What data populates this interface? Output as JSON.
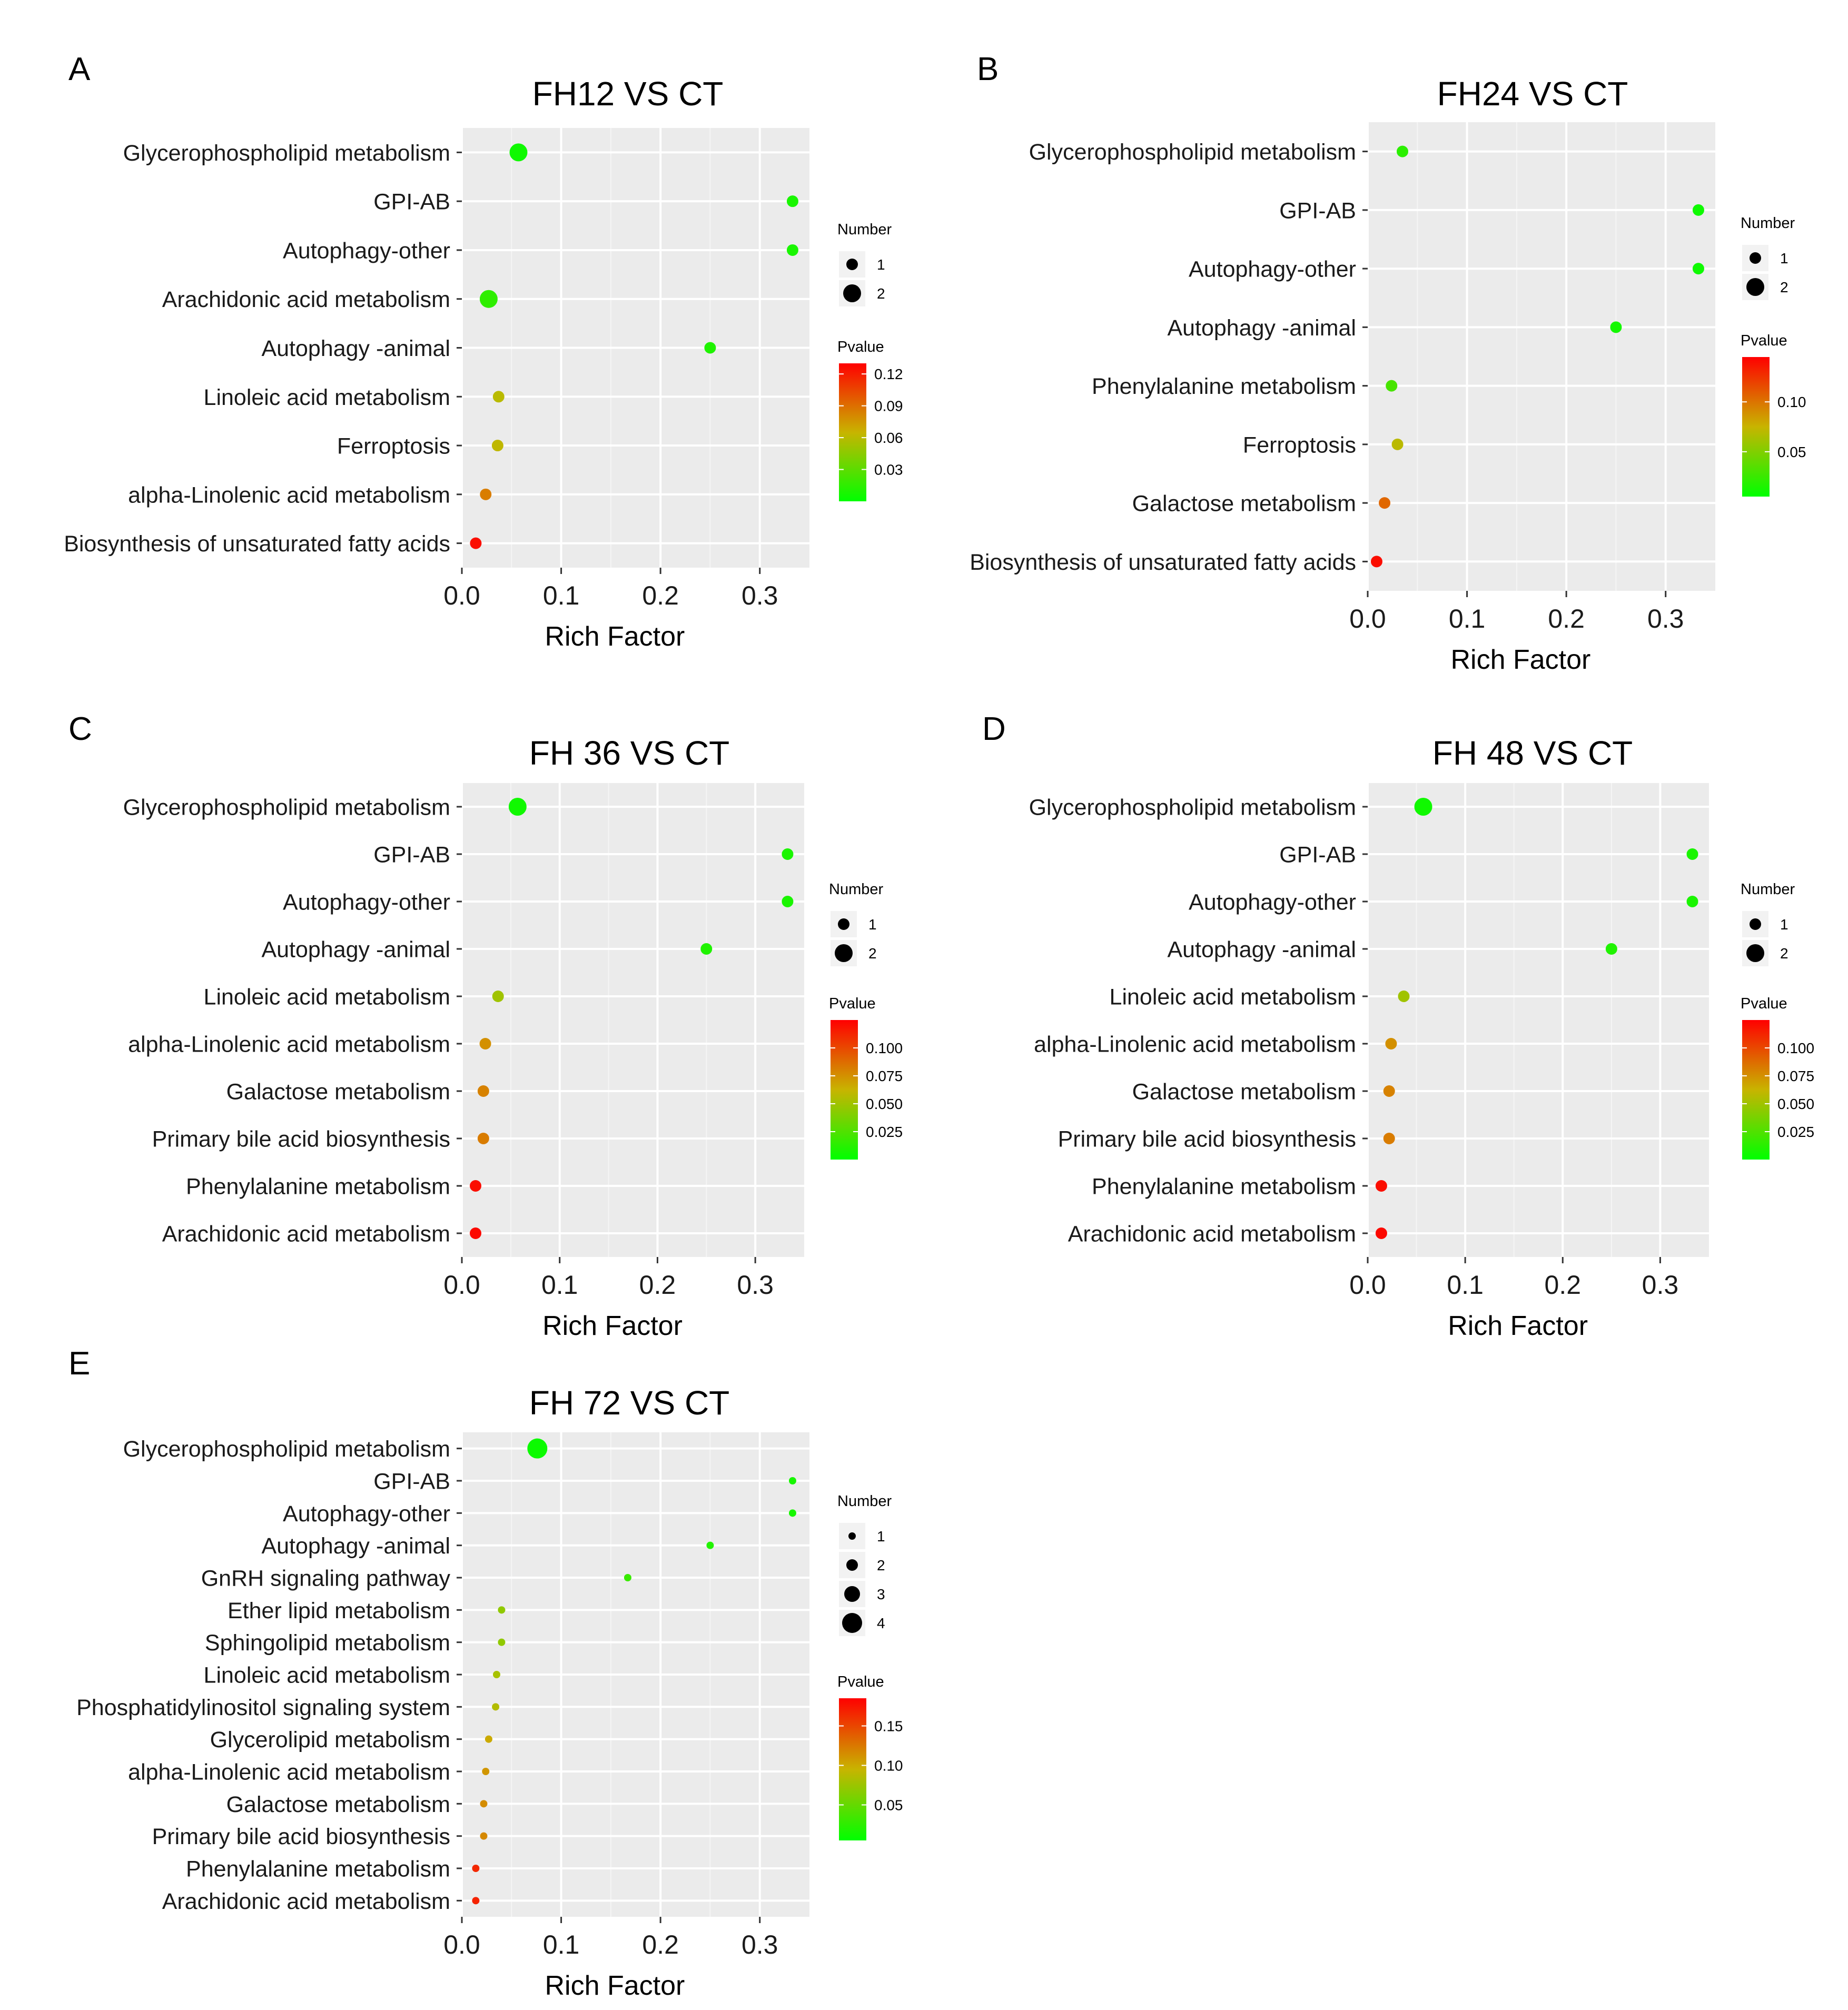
{
  "chart_data": [
    {
      "panel": "A",
      "type": "scatter",
      "title": "FH12 VS CT",
      "xlabel": "Rich Factor",
      "xlim": [
        0,
        0.35
      ],
      "xticks": [
        0.0,
        0.1,
        0.2,
        0.3
      ],
      "xtick_labels": [
        "0.0",
        "0.1",
        "0.2",
        "0.3"
      ],
      "grid": true,
      "legend_placement": "right",
      "size_legend": {
        "title": "Number",
        "values": [
          1,
          2
        ]
      },
      "color_legend": {
        "title": "Pvalue",
        "ticks": [
          0.12,
          0.09,
          0.06,
          0.03
        ],
        "tick_labels": [
          "0.12",
          "0.09",
          "0.06",
          "0.03"
        ],
        "range": [
          0.0,
          0.13
        ],
        "low_color": "#00ff00",
        "mid_color": "#c8b400",
        "high_color": "#ff0000"
      },
      "points": [
        {
          "pathway": "Glycerophospholipid metabolism",
          "rich_factor": 0.057,
          "number": 2,
          "pvalue": 0.005
        },
        {
          "pathway": "GPI-AB",
          "rich_factor": 0.333,
          "number": 1,
          "pvalue": 0.008
        },
        {
          "pathway": "Autophagy-other",
          "rich_factor": 0.333,
          "number": 1,
          "pvalue": 0.008
        },
        {
          "pathway": "Arachidonic acid metabolism",
          "rich_factor": 0.027,
          "number": 2,
          "pvalue": 0.015
        },
        {
          "pathway": "Autophagy -animal",
          "rich_factor": 0.25,
          "number": 1,
          "pvalue": 0.01
        },
        {
          "pathway": "Linoleic acid metabolism",
          "rich_factor": 0.037,
          "number": 1,
          "pvalue": 0.06
        },
        {
          "pathway": "Ferroptosis",
          "rich_factor": 0.036,
          "number": 1,
          "pvalue": 0.062
        },
        {
          "pathway": "alpha-Linolenic acid metabolism",
          "rich_factor": 0.024,
          "number": 1,
          "pvalue": 0.085
        },
        {
          "pathway": "Biosynthesis of unsaturated fatty acids",
          "rich_factor": 0.014,
          "number": 1,
          "pvalue": 0.125
        }
      ]
    },
    {
      "panel": "B",
      "type": "scatter",
      "title": "FH24 VS CT",
      "xlabel": "Rich Factor",
      "xlim": [
        0,
        0.35
      ],
      "xticks": [
        0.0,
        0.1,
        0.2,
        0.3
      ],
      "xtick_labels": [
        "0.0",
        "0.1",
        "0.2",
        "0.3"
      ],
      "grid": true,
      "legend_placement": "right",
      "size_legend": {
        "title": "Number",
        "values": [
          1,
          2
        ]
      },
      "color_legend": {
        "title": "Pvalue",
        "ticks": [
          0.1,
          0.05
        ],
        "tick_labels": [
          "0.10",
          "0.05"
        ],
        "range": [
          0.005,
          0.145
        ],
        "low_color": "#00ff00",
        "mid_color": "#c8b400",
        "high_color": "#ff0000"
      },
      "points": [
        {
          "pathway": "Glycerophospholipid metabolism",
          "rich_factor": 0.035,
          "number": 1,
          "pvalue": 0.02
        },
        {
          "pathway": "GPI-AB",
          "rich_factor": 0.333,
          "number": 1,
          "pvalue": 0.01
        },
        {
          "pathway": "Autophagy-other",
          "rich_factor": 0.333,
          "number": 1,
          "pvalue": 0.01
        },
        {
          "pathway": "Autophagy -animal",
          "rich_factor": 0.25,
          "number": 1,
          "pvalue": 0.012
        },
        {
          "pathway": "Phenylalanine metabolism",
          "rich_factor": 0.024,
          "number": 1,
          "pvalue": 0.03
        },
        {
          "pathway": "Ferroptosis",
          "rich_factor": 0.03,
          "number": 1,
          "pvalue": 0.07
        },
        {
          "pathway": "Galactose metabolism",
          "rich_factor": 0.017,
          "number": 1,
          "pvalue": 0.105
        },
        {
          "pathway": "Biosynthesis of unsaturated fatty acids",
          "rich_factor": 0.009,
          "number": 1,
          "pvalue": 0.14
        }
      ]
    },
    {
      "panel": "C",
      "type": "scatter",
      "title": "FH 36 VS CT",
      "xlabel": "Rich Factor",
      "xlim": [
        0,
        0.35
      ],
      "xticks": [
        0.0,
        0.1,
        0.2,
        0.3
      ],
      "xtick_labels": [
        "0.0",
        "0.1",
        "0.2",
        "0.3"
      ],
      "grid": true,
      "legend_placement": "right",
      "size_legend": {
        "title": "Number",
        "values": [
          1,
          2
        ]
      },
      "color_legend": {
        "title": "Pvalue",
        "ticks": [
          0.1,
          0.075,
          0.05,
          0.025
        ],
        "tick_labels": [
          "0.100",
          "0.075",
          "0.050",
          "0.025"
        ],
        "range": [
          0.0,
          0.125
        ],
        "low_color": "#00ff00",
        "mid_color": "#c8b400",
        "high_color": "#ff0000"
      },
      "points": [
        {
          "pathway": "Glycerophospholipid metabolism",
          "rich_factor": 0.057,
          "number": 2,
          "pvalue": 0.005
        },
        {
          "pathway": "GPI-AB",
          "rich_factor": 0.333,
          "number": 1,
          "pvalue": 0.008
        },
        {
          "pathway": "Autophagy-other",
          "rich_factor": 0.333,
          "number": 1,
          "pvalue": 0.008
        },
        {
          "pathway": "Autophagy -animal",
          "rich_factor": 0.25,
          "number": 1,
          "pvalue": 0.01
        },
        {
          "pathway": "Linoleic acid metabolism",
          "rich_factor": 0.037,
          "number": 1,
          "pvalue": 0.05
        },
        {
          "pathway": "alpha-Linolenic acid metabolism",
          "rich_factor": 0.024,
          "number": 1,
          "pvalue": 0.075
        },
        {
          "pathway": "Galactose metabolism",
          "rich_factor": 0.022,
          "number": 1,
          "pvalue": 0.08
        },
        {
          "pathway": "Primary bile acid biosynthesis",
          "rich_factor": 0.022,
          "number": 1,
          "pvalue": 0.082
        },
        {
          "pathway": "Phenylalanine metabolism",
          "rich_factor": 0.014,
          "number": 1,
          "pvalue": 0.12
        },
        {
          "pathway": "Arachidonic acid metabolism",
          "rich_factor": 0.014,
          "number": 1,
          "pvalue": 0.122
        }
      ]
    },
    {
      "panel": "D",
      "type": "scatter",
      "title": "FH 48 VS CT",
      "xlabel": "Rich Factor",
      "xlim": [
        0,
        0.35
      ],
      "xticks": [
        0.0,
        0.1,
        0.2,
        0.3
      ],
      "xtick_labels": [
        "0.0",
        "0.1",
        "0.2",
        "0.3"
      ],
      "grid": true,
      "legend_placement": "right",
      "size_legend": {
        "title": "Number",
        "values": [
          1,
          2
        ]
      },
      "color_legend": {
        "title": "Pvalue",
        "ticks": [
          0.1,
          0.075,
          0.05,
          0.025
        ],
        "tick_labels": [
          "0.100",
          "0.075",
          "0.050",
          "0.025"
        ],
        "range": [
          0.0,
          0.125
        ],
        "low_color": "#00ff00",
        "mid_color": "#c8b400",
        "high_color": "#ff0000"
      },
      "points": [
        {
          "pathway": "Glycerophospholipid metabolism",
          "rich_factor": 0.057,
          "number": 2,
          "pvalue": 0.005
        },
        {
          "pathway": "GPI-AB",
          "rich_factor": 0.333,
          "number": 1,
          "pvalue": 0.008
        },
        {
          "pathway": "Autophagy-other",
          "rich_factor": 0.333,
          "number": 1,
          "pvalue": 0.008
        },
        {
          "pathway": "Autophagy -animal",
          "rich_factor": 0.25,
          "number": 1,
          "pvalue": 0.01
        },
        {
          "pathway": "Linoleic acid metabolism",
          "rich_factor": 0.037,
          "number": 1,
          "pvalue": 0.05
        },
        {
          "pathway": "alpha-Linolenic acid metabolism",
          "rich_factor": 0.024,
          "number": 1,
          "pvalue": 0.075
        },
        {
          "pathway": "Galactose metabolism",
          "rich_factor": 0.022,
          "number": 1,
          "pvalue": 0.08
        },
        {
          "pathway": "Primary bile acid biosynthesis",
          "rich_factor": 0.022,
          "number": 1,
          "pvalue": 0.082
        },
        {
          "pathway": "Phenylalanine metabolism",
          "rich_factor": 0.014,
          "number": 1,
          "pvalue": 0.12
        },
        {
          "pathway": "Arachidonic acid metabolism",
          "rich_factor": 0.014,
          "number": 1,
          "pvalue": 0.122
        }
      ]
    },
    {
      "panel": "E",
      "type": "scatter",
      "title": "FH 72 VS CT",
      "xlabel": "Rich Factor",
      "xlim": [
        0,
        0.35
      ],
      "xticks": [
        0.0,
        0.1,
        0.2,
        0.3
      ],
      "xtick_labels": [
        "0.0",
        "0.1",
        "0.2",
        "0.3"
      ],
      "grid": true,
      "legend_placement": "right",
      "size_legend": {
        "title": "Number",
        "values": [
          1,
          2,
          3,
          4
        ]
      },
      "color_legend": {
        "title": "Pvalue",
        "ticks": [
          0.15,
          0.1,
          0.05
        ],
        "tick_labels": [
          "0.15",
          "0.10",
          "0.05"
        ],
        "range": [
          0.005,
          0.185
        ],
        "low_color": "#00ff00",
        "mid_color": "#c8b400",
        "high_color": "#ff0000"
      },
      "points": [
        {
          "pathway": "Glycerophospholipid metabolism",
          "rich_factor": 0.076,
          "number": 4,
          "pvalue": 0.01
        },
        {
          "pathway": "GPI-AB",
          "rich_factor": 0.333,
          "number": 1,
          "pvalue": 0.015
        },
        {
          "pathway": "Autophagy-other",
          "rich_factor": 0.333,
          "number": 1,
          "pvalue": 0.015
        },
        {
          "pathway": "Autophagy -animal",
          "rich_factor": 0.25,
          "number": 1,
          "pvalue": 0.02
        },
        {
          "pathway": "GnRH signaling pathway",
          "rich_factor": 0.167,
          "number": 1,
          "pvalue": 0.03
        },
        {
          "pathway": "Ether lipid metabolism",
          "rich_factor": 0.04,
          "number": 1,
          "pvalue": 0.07
        },
        {
          "pathway": "Sphingolipid metabolism",
          "rich_factor": 0.04,
          "number": 1,
          "pvalue": 0.07
        },
        {
          "pathway": "Linoleic acid metabolism",
          "rich_factor": 0.035,
          "number": 1,
          "pvalue": 0.08
        },
        {
          "pathway": "Phosphatidylinositol signaling system",
          "rich_factor": 0.034,
          "number": 1,
          "pvalue": 0.085
        },
        {
          "pathway": "Glycerolipid metabolism",
          "rich_factor": 0.027,
          "number": 1,
          "pvalue": 0.1
        },
        {
          "pathway": "alpha-Linolenic acid metabolism",
          "rich_factor": 0.024,
          "number": 1,
          "pvalue": 0.11
        },
        {
          "pathway": "Galactose metabolism",
          "rich_factor": 0.022,
          "number": 1,
          "pvalue": 0.115
        },
        {
          "pathway": "Primary bile acid biosynthesis",
          "rich_factor": 0.022,
          "number": 1,
          "pvalue": 0.117
        },
        {
          "pathway": "Phenylalanine metabolism",
          "rich_factor": 0.014,
          "number": 1,
          "pvalue": 0.165
        },
        {
          "pathway": "Arachidonic acid metabolism",
          "rich_factor": 0.014,
          "number": 1,
          "pvalue": 0.168
        }
      ]
    }
  ]
}
